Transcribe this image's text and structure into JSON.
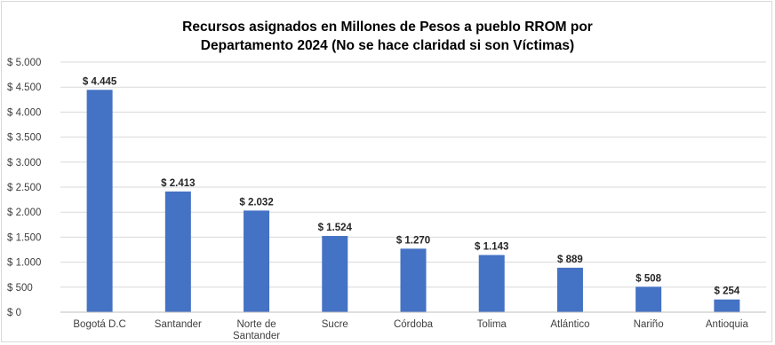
{
  "chart_data": {
    "type": "bar",
    "title_lines": [
      "Recursos asignados en Millones de Pesos a pueblo RROM por",
      "Departamento 2024  (No se hace claridad si son Víctimas)"
    ],
    "categories": [
      "Bogotá D.C",
      "Santander",
      "Norte de Santander",
      "Sucre",
      "Córdoba",
      "Tolima",
      "Atlántico",
      "Nariño",
      "Antioquia"
    ],
    "category_label_lines": [
      [
        "Bogotá D.C"
      ],
      [
        "Santander"
      ],
      [
        "Norte de",
        "Santander"
      ],
      [
        "Sucre"
      ],
      [
        "Córdoba"
      ],
      [
        "Tolima"
      ],
      [
        "Atlántico"
      ],
      [
        "Nariño"
      ],
      [
        "Antioquia"
      ]
    ],
    "values": [
      4445,
      2413,
      2032,
      1524,
      1270,
      1143,
      889,
      508,
      254
    ],
    "data_labels": [
      "$ 4.445",
      "$ 2.413",
      "$ 2.032",
      "$ 1.524",
      "$ 1.270",
      "$ 1.143",
      "$ 889",
      "$ 508",
      "$ 254"
    ],
    "ylim": [
      0,
      5000
    ],
    "yticks": [
      0,
      500,
      1000,
      1500,
      2000,
      2500,
      3000,
      3500,
      4000,
      4500,
      5000
    ],
    "ytick_labels": [
      "$ 0",
      "$ 500",
      "$ 1.000",
      "$ 1.500",
      "$ 2.000",
      "$ 2.500",
      "$ 3.000",
      "$ 3.500",
      "$ 4.000",
      "$ 4.500",
      "$ 5.000"
    ],
    "xlabel": "",
    "ylabel": "",
    "grid": true,
    "legend": "none",
    "bar_color": "#4472c4",
    "grid_color": "#d9d9d9"
  }
}
